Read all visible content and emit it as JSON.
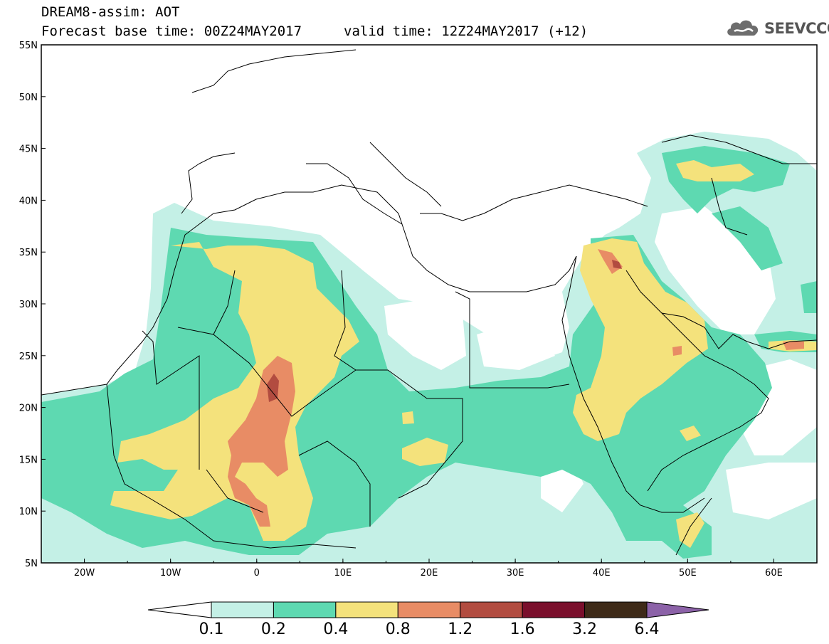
{
  "header": {
    "line1": "DREAM8-assim: AOT",
    "line2": "Forecast base time: 00Z24MAY2017",
    "line3": "valid time: 12Z24MAY2017 (+12)"
  },
  "logo": {
    "text": "SEEVCCC",
    "icon": "cloud-icon"
  },
  "axes": {
    "lon_labels": [
      "20W",
      "10W",
      "0",
      "10E",
      "20E",
      "30E",
      "40E",
      "50E",
      "60E"
    ],
    "lat_labels": [
      "55N",
      "50N",
      "45N",
      "40N",
      "35N",
      "30N",
      "25N",
      "20N",
      "15N",
      "10N",
      "5N"
    ],
    "lon_range": [
      -25,
      65
    ],
    "lat_range": [
      5,
      55
    ]
  },
  "colorbar": {
    "labels": [
      "0.1",
      "0.2",
      "0.4",
      "0.8",
      "1.2",
      "1.6",
      "3.2",
      "6.4"
    ],
    "colors": [
      "#c4f0e6",
      "#5ed9b1",
      "#f4e27c",
      "#e88c65",
      "#b24c40",
      "#7a0f2c",
      "#3e2a18"
    ],
    "under_color": "#ffffff",
    "over_color": "#8c62a8"
  }
}
